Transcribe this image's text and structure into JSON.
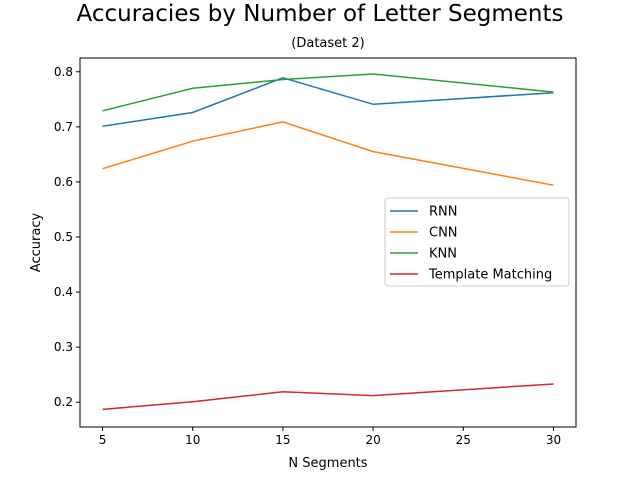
{
  "chart_data": {
    "type": "line",
    "title": "Accuracies by Number of Letter Segments",
    "subtitle": "(Dataset 2)",
    "xlabel": "N Segments",
    "ylabel": "Accuracy",
    "x": [
      5,
      10,
      15,
      20,
      30
    ],
    "xlim": [
      3.75,
      31.25
    ],
    "ylim": [
      0.155,
      0.825
    ],
    "xticks": [
      5,
      10,
      15,
      20,
      25,
      30
    ],
    "yticks": [
      0.2,
      0.3,
      0.4,
      0.5,
      0.6,
      0.7,
      0.8
    ],
    "grid": false,
    "legend_position": "center-right",
    "series": [
      {
        "name": "RNN",
        "color": "#1f77b4",
        "values": [
          0.701,
          0.726,
          0.789,
          0.741,
          0.762
        ]
      },
      {
        "name": "CNN",
        "color": "#ff7f0e",
        "values": [
          0.624,
          0.674,
          0.709,
          0.655,
          0.594
        ]
      },
      {
        "name": "KNN",
        "color": "#2ca02c",
        "values": [
          0.729,
          0.77,
          0.786,
          0.796,
          0.763
        ]
      },
      {
        "name": "Template Matching",
        "color": "#d62728",
        "values": [
          0.187,
          0.201,
          0.219,
          0.212,
          0.233
        ]
      }
    ]
  }
}
